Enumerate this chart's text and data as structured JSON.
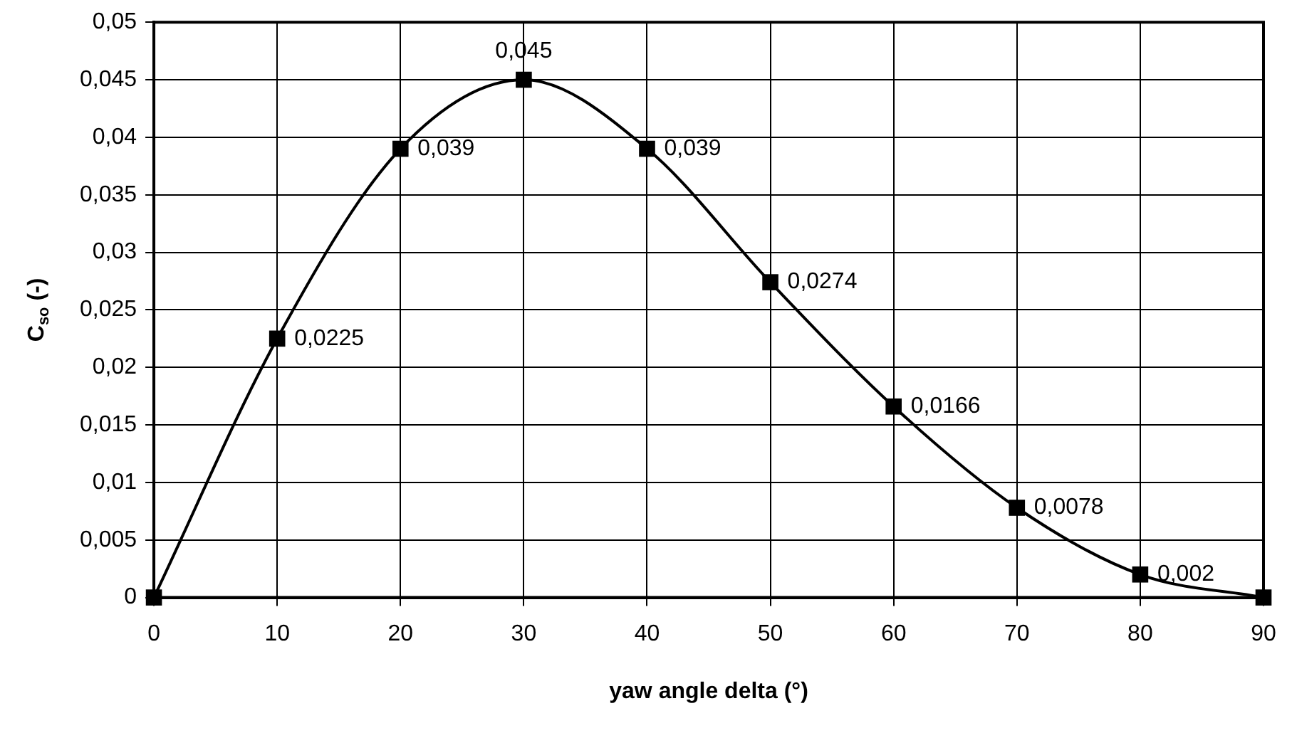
{
  "chart_data": {
    "type": "line",
    "xlabel": "yaw angle delta (°)",
    "ylabel": "C$_{so}$ (-)",
    "x": [
      0,
      10,
      20,
      30,
      40,
      50,
      60,
      70,
      80,
      90
    ],
    "series": [
      {
        "color": "#000000",
        "values": [
          0,
          0.0225,
          0.039,
          0.045,
          0.039,
          0.0274,
          0.0166,
          0.0078,
          0.002,
          0
        ]
      }
    ],
    "value_labels": [
      null,
      "0,0225",
      "0,039",
      "0,045",
      "0,039",
      "0,0274",
      "0,0166",
      "0,0078",
      "0,002",
      null
    ],
    "xlim": [
      0,
      90
    ],
    "xticks": [
      0,
      10,
      20,
      30,
      40,
      50,
      60,
      70,
      80,
      90
    ],
    "ylim": [
      0,
      0.05
    ],
    "yticks": [
      0,
      {
        "value": 0.005,
        "label": "0,005"
      },
      {
        "value": 0.01,
        "label": "0,01"
      },
      {
        "value": 0.015,
        "label": "0,015"
      },
      {
        "value": 0.02,
        "label": "0,02"
      },
      {
        "value": 0.025,
        "label": "0,025"
      },
      {
        "value": 0.03,
        "label": "0,03"
      },
      {
        "value": 0.035,
        "label": "0,035"
      },
      {
        "value": 0.04,
        "label": "0,04"
      },
      {
        "value": 0.045,
        "label": "0,045"
      },
      {
        "value": 0.05,
        "label": "0,05"
      }
    ],
    "grid": true,
    "legend": false,
    "marker": "square",
    "line_style": "solid"
  }
}
